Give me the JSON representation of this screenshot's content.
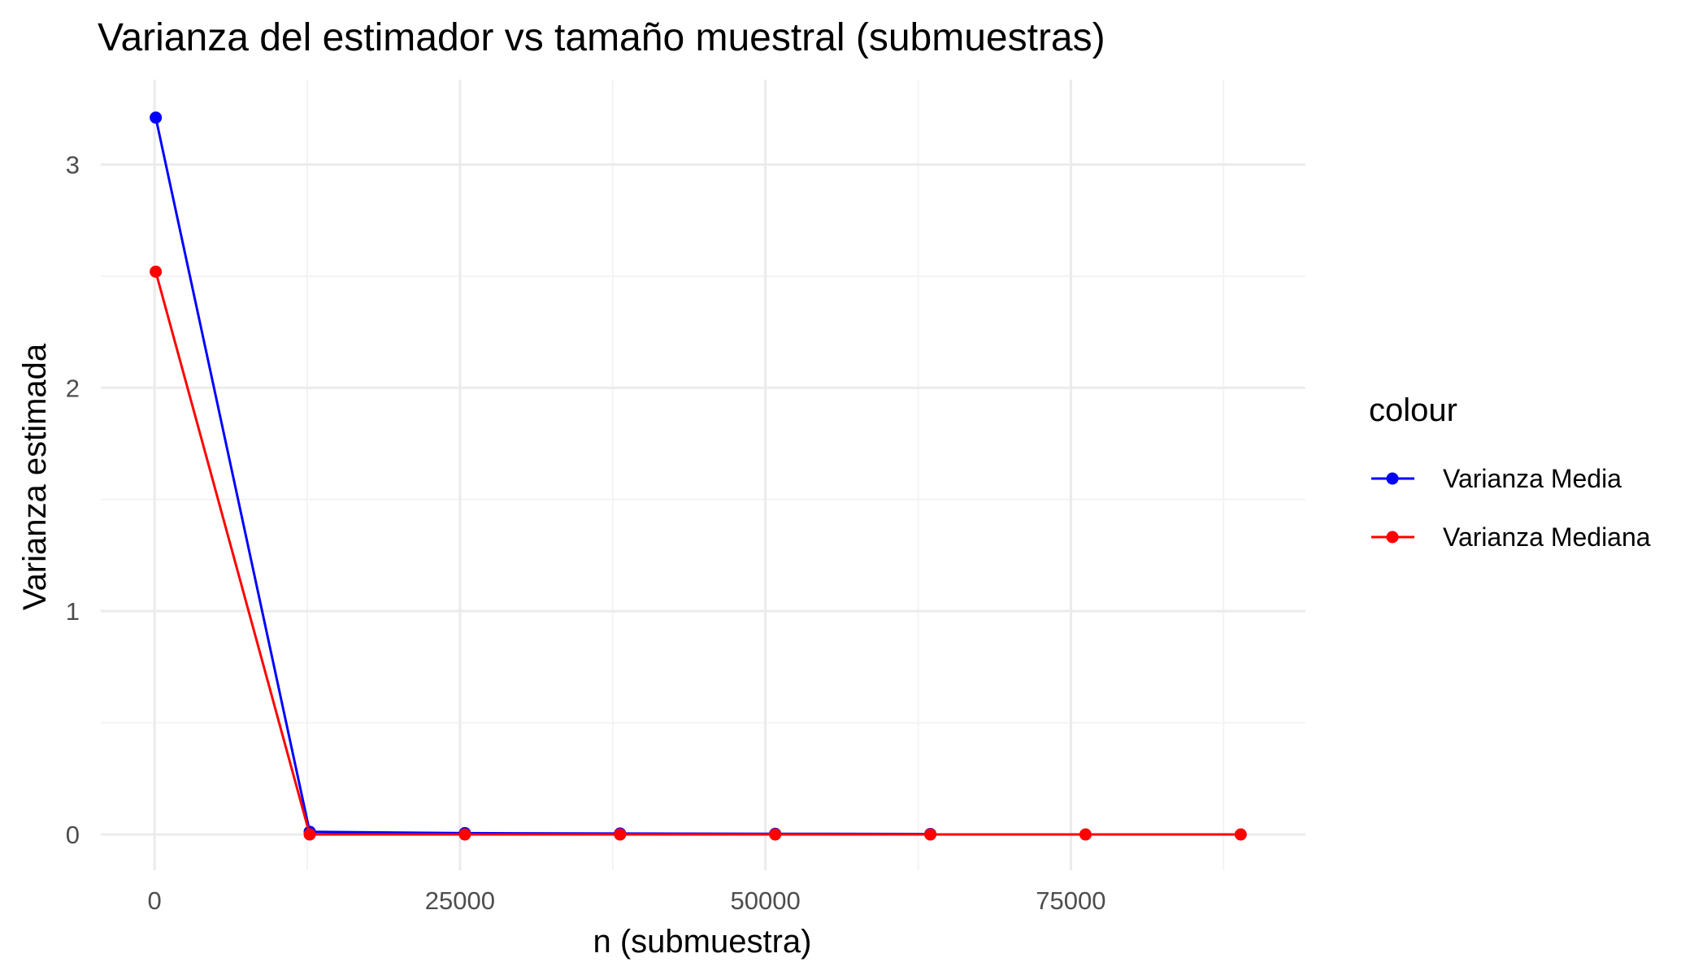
{
  "chart_data": {
    "type": "line",
    "title": "Varianza del estimador vs tamaño muestral (submuestras)",
    "xlabel": "n (submuestra)",
    "ylabel": "Varianza estimada",
    "xlim": [
      -4400,
      94200
    ],
    "ylim": [
      -0.16,
      3.38
    ],
    "x_ticks": [
      0,
      25000,
      50000,
      75000
    ],
    "x_tick_labels": [
      "0",
      "25000",
      "50000",
      "75000"
    ],
    "y_ticks": [
      0,
      1,
      2,
      3
    ],
    "y_tick_labels": [
      "0",
      "1",
      "2",
      "3"
    ],
    "grid": true,
    "legend": {
      "title": "colour",
      "position": "right",
      "entries": [
        "Varianza Media",
        "Varianza Mediana"
      ]
    },
    "series": [
      {
        "name": "Varianza Media",
        "color": "#0000FF",
        "x": [
          100,
          12700,
          25400,
          38100,
          50800,
          63500
        ],
        "y": [
          3.21,
          0.012,
          0.006,
          0.004,
          0.003,
          0.002
        ]
      },
      {
        "name": "Varianza Mediana",
        "color": "#FF0000",
        "x": [
          100,
          12700,
          25400,
          38100,
          50800,
          63500,
          76200,
          88900
        ],
        "y": [
          2.52,
          0.0,
          0.0,
          0.0,
          0.0,
          0.0,
          0.0,
          0.0
        ]
      }
    ]
  }
}
